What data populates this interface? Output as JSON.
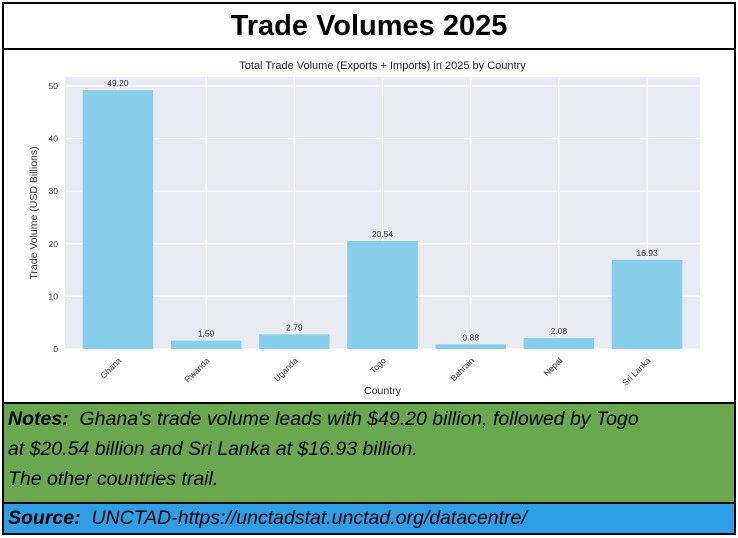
{
  "header": {
    "title": "Trade Volumes 2025"
  },
  "chart_data": {
    "type": "bar",
    "title": "Total Trade Volume (Exports + Imports) in 2025 by Country",
    "xlabel": "Country",
    "ylabel": "Trade Volume (USD Billions)",
    "categories": [
      "Ghana",
      "Rwanda",
      "Uganda",
      "Togo",
      "Bahrain",
      "Nepal",
      "Sri Lanka"
    ],
    "values": [
      49.2,
      1.59,
      2.79,
      20.54,
      0.88,
      2.08,
      16.93
    ],
    "data_labels": [
      "49.20",
      "1.59",
      "2.79",
      "20.54",
      "0.88",
      "2.08",
      "16.93"
    ],
    "yticks": [
      0,
      10,
      20,
      30,
      40,
      50
    ],
    "ylim": [
      0,
      51.7
    ],
    "grid": true,
    "bar_color": "#87ceeb",
    "background_color": "#eaeaf2"
  },
  "notes": {
    "label": "Notes:",
    "line1": "Ghana's trade volume leads with $49.20 billion, followed by Togo",
    "line2": "at $20.54 billion and Sri Lanka at $16.93 billion.",
    "line3": "The other countries trail."
  },
  "source": {
    "label": "Source:",
    "text": "UNCTAD-https://unctadstat.unctad.org/datacentre/"
  }
}
